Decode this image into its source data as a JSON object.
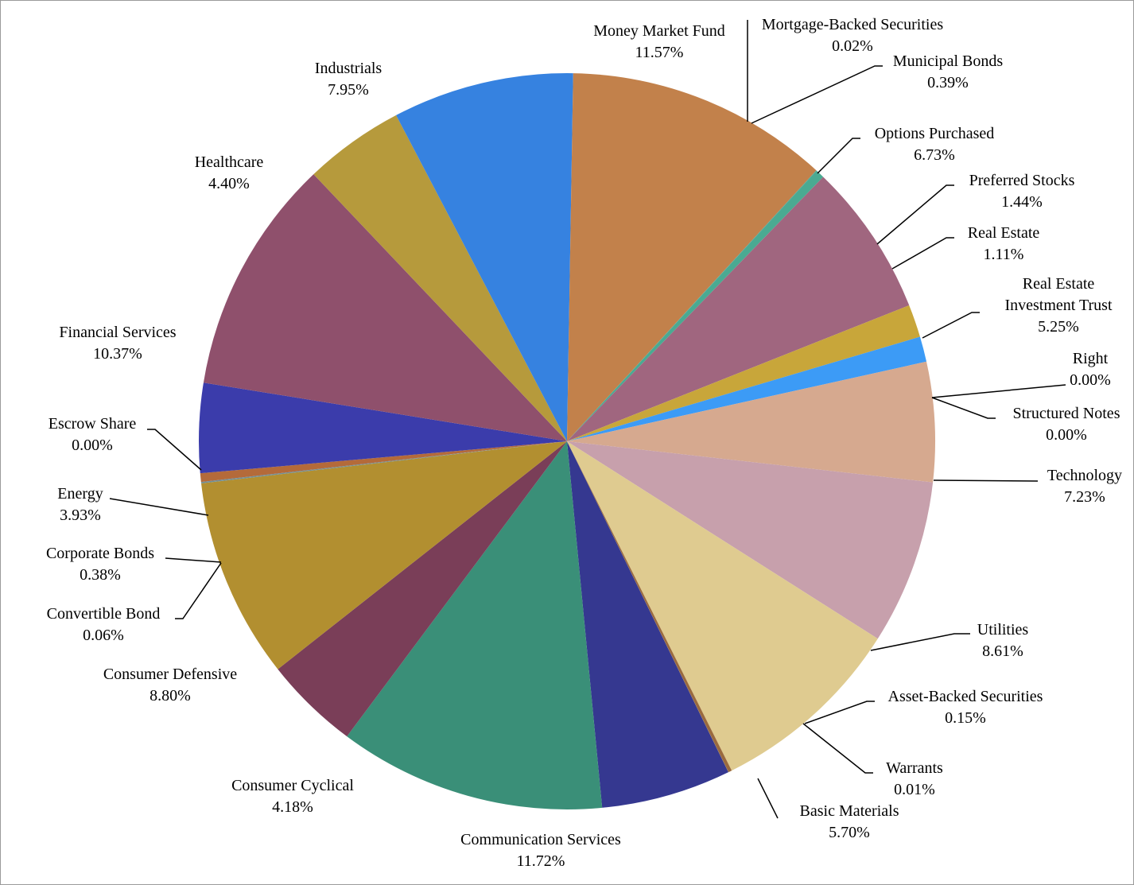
{
  "chart_data": {
    "type": "pie",
    "title": "",
    "legend": "none",
    "units": "%",
    "slices": [
      {
        "name": "Basic Materials",
        "value": 5.7,
        "label": "5.70%",
        "color": "#353890"
      },
      {
        "name": "Communication Services",
        "value": 11.72,
        "label": "11.72%",
        "color": "#3a8f78"
      },
      {
        "name": "Consumer Cyclical",
        "value": 4.18,
        "label": "4.18%",
        "color": "#7a3e58"
      },
      {
        "name": "Consumer Defensive",
        "value": 8.8,
        "label": "8.80%",
        "color": "#b28f30"
      },
      {
        "name": "Convertible Bond",
        "value": 0.06,
        "label": "0.06%",
        "color": "#6f8f9a"
      },
      {
        "name": "Corporate Bonds",
        "value": 0.38,
        "label": "0.38%",
        "color": "#b46a3a"
      },
      {
        "name": "Energy",
        "value": 3.93,
        "label": "3.93%",
        "color": "#3b3cab"
      },
      {
        "name": "Escrow Share",
        "value": 0.0,
        "label": "0.00%",
        "color": "#777777"
      },
      {
        "name": "Financial Services",
        "value": 10.37,
        "label": "10.37%",
        "color": "#8f506c"
      },
      {
        "name": "Healthcare",
        "value": 4.4,
        "label": "4.40%",
        "color": "#b69a3c"
      },
      {
        "name": "Industrials",
        "value": 7.95,
        "label": "7.95%",
        "color": "#3682e0"
      },
      {
        "name": "Money Market Fund",
        "value": 11.57,
        "label": "11.57%",
        "color": "#c2814b"
      },
      {
        "name": "Mortgage-Backed Securities",
        "value": 0.02,
        "label": "0.02%",
        "color": "#4f9a8a"
      },
      {
        "name": "Municipal Bonds",
        "value": 0.39,
        "label": "0.39%",
        "color": "#4aaa92"
      },
      {
        "name": "Options Purchased",
        "value": 6.73,
        "label": "6.73%",
        "color": "#a0667f"
      },
      {
        "name": "Preferred Stocks",
        "value": 1.44,
        "label": "1.44%",
        "color": "#c8a63a"
      },
      {
        "name": "Real Estate",
        "value": 1.11,
        "label": "1.11%",
        "color": "#3c9bf6"
      },
      {
        "name": "Real Estate Investment Trust",
        "value": 5.25,
        "label": "5.25%",
        "color": "#d6a98f"
      },
      {
        "name": "Right",
        "value": 0.0,
        "label": "0.00%",
        "color": "#777777"
      },
      {
        "name": "Structured Notes",
        "value": 0.0,
        "label": "0.00%",
        "color": "#777777"
      },
      {
        "name": "Technology",
        "value": 7.23,
        "label": "7.23%",
        "color": "#c7a0ac"
      },
      {
        "name": "Utilities",
        "value": 8.61,
        "label": "8.61%",
        "color": "#dfcb90"
      },
      {
        "name": "Asset-Backed Securities",
        "value": 0.15,
        "label": "0.15%",
        "color": "#9a6a3e"
      },
      {
        "name": "Warrants",
        "value": 0.01,
        "label": "0.01%",
        "color": "#8a6a4a"
      }
    ]
  }
}
